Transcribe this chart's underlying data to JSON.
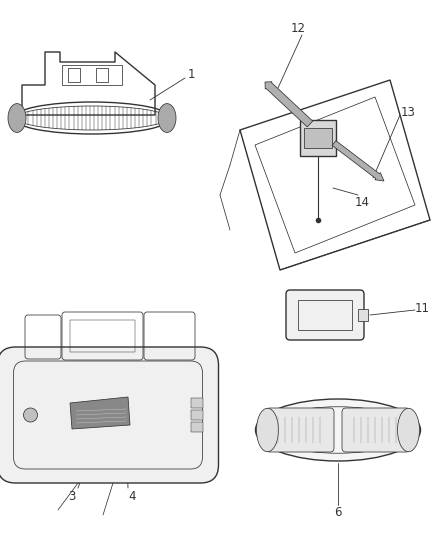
{
  "bg_color": "#ffffff",
  "line_color": "#333333",
  "label_color": "#333333",
  "lw_main": 1.0,
  "lw_thin": 0.55,
  "lw_rib": 0.35,
  "font_size": 8.5
}
